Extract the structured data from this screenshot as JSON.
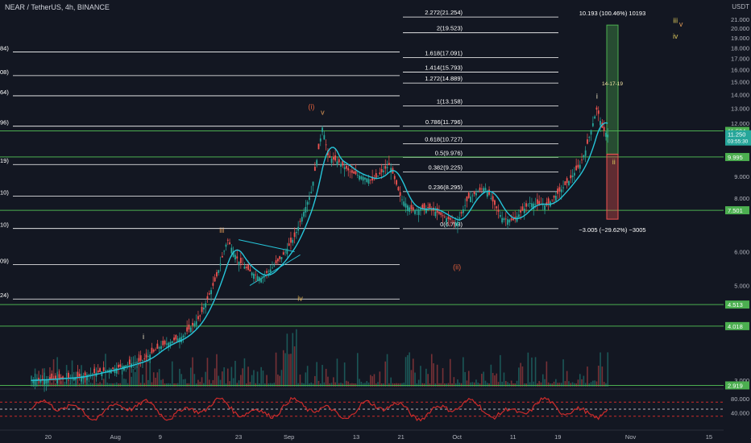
{
  "header": {
    "symbol": "NEAR / TetherUS, 4h, BINANCE",
    "currency": "USDT"
  },
  "chart_data": {
    "type": "candlestick",
    "symbol": "NEAR / TetherUS",
    "interval": "4h",
    "exchange": "BINANCE",
    "y_scale": "log",
    "ylim": [
      2.9,
      22.5
    ],
    "price_axis_ticks": [
      "21.000",
      "20.000",
      "19.000",
      "18.000",
      "17.000",
      "16.000",
      "15.000",
      "14.000",
      "13.000",
      "12.000",
      "9.000",
      "8.000",
      "6.000",
      "5.000",
      "3.000"
    ],
    "time_axis_ticks": [
      "20",
      "Aug",
      "9",
      "23",
      "Sep",
      "13",
      "21",
      "Oct",
      "11",
      "19",
      "Nov",
      "15",
      "23"
    ],
    "price_path": [
      [
        "Jul 17",
        3.0
      ],
      [
        "Jul 25",
        3.05
      ],
      [
        "Aug 1",
        3.2
      ],
      [
        "Aug 6",
        3.35
      ],
      [
        "Aug 9",
        3.6
      ],
      [
        "Aug 13",
        3.8
      ],
      [
        "Aug 16",
        4.2
      ],
      [
        "Aug 19",
        5.2
      ],
      [
        "Aug 21",
        6.4
      ],
      [
        "Aug 23",
        5.7
      ],
      [
        "Aug 25",
        5.4
      ],
      [
        "Aug 27",
        5.2
      ],
      [
        "Aug 29",
        5.5
      ],
      [
        "Aug 31",
        5.9
      ],
      [
        "Sep 1",
        6.2
      ],
      [
        "Sep 2",
        6.5
      ],
      [
        "Sep 5",
        8.3
      ],
      [
        "Sep 7",
        11.8
      ],
      [
        "Sep 8",
        10.0
      ],
      [
        "Sep 10",
        9.7
      ],
      [
        "Sep 12",
        9.2
      ],
      [
        "Sep 14",
        9.0
      ],
      [
        "Sep 16",
        8.8
      ],
      [
        "Sep 19",
        9.6
      ],
      [
        "Sep 21",
        8.0
      ],
      [
        "Sep 23",
        7.5
      ],
      [
        "Sep 26",
        7.6
      ],
      [
        "Sep 29",
        7.2
      ],
      [
        "Oct 1",
        7.0
      ],
      [
        "Oct 3",
        8.0
      ],
      [
        "Oct 6",
        8.5
      ],
      [
        "Oct 9",
        7.2
      ],
      [
        "Oct 11",
        7.1
      ],
      [
        "Oct 14",
        7.8
      ],
      [
        "Oct 17",
        7.7
      ],
      [
        "Oct 19",
        8.2
      ],
      [
        "Oct 21",
        8.8
      ],
      [
        "Oct 23",
        9.6
      ],
      [
        "Oct 24",
        10.4
      ],
      [
        "Oct 26",
        13.0
      ],
      [
        "Oct 27",
        11.6
      ],
      [
        "Oct 28",
        11.25
      ]
    ],
    "fibonacci_levels": [
      {
        "ratio": "0",
        "label": "0(6.793)",
        "price": 6.793
      },
      {
        "ratio": "0.236",
        "label": "0.236(8.295)",
        "price": 8.295
      },
      {
        "ratio": "0.382",
        "label": "0.382(9.225)",
        "price": 9.225
      },
      {
        "ratio": "0.5",
        "label": "0.5(9.976)",
        "price": 9.976
      },
      {
        "ratio": "0.618",
        "label": "0.618(10.727)",
        "price": 10.727
      },
      {
        "ratio": "0.786",
        "label": "0.786(11.796)",
        "price": 11.796
      },
      {
        "ratio": "1",
        "label": "1(13.158)",
        "price": 13.158
      },
      {
        "ratio": "1.272",
        "label": "1.272(14.889)",
        "price": 14.889
      },
      {
        "ratio": "1.414",
        "label": "1.414(15.793)",
        "price": 15.793
      },
      {
        "ratio": "1.618",
        "label": "1.618(17.091)",
        "price": 17.091
      },
      {
        "ratio": "2",
        "label": "2(19.523)",
        "price": 19.523
      },
      {
        "ratio": "2.272",
        "label": "2.272(21.254)",
        "price": 21.254
      }
    ],
    "left_cut_labels": [
      {
        "text": "84)",
        "price": 17.6
      },
      {
        "text": "08)",
        "price": 15.5
      },
      {
        "text": "64)",
        "price": 13.9
      },
      {
        "text": "96)",
        "price": 11.8
      },
      {
        "text": "19)",
        "price": 9.6
      },
      {
        "text": "10)",
        "price": 8.1
      },
      {
        "text": "10)",
        "price": 6.8
      },
      {
        "text": "09)",
        "price": 5.6
      },
      {
        "text": "24)",
        "price": 4.65
      }
    ],
    "horizontal_levels": [
      {
        "price": 11.504,
        "label": "11.504"
      },
      {
        "price": 9.995,
        "label": "9.995"
      },
      {
        "price": 7.501,
        "label": "7.501"
      },
      {
        "price": 4.513,
        "label": "4.513"
      },
      {
        "price": 4.018,
        "label": "4.018"
      },
      {
        "price": 2.919,
        "label": "2.919"
      }
    ],
    "last_price": {
      "value": "11.250",
      "countdown": "03:55:30"
    },
    "long_position": {
      "label": "10.193 (100.46%) 10193",
      "entry": 10.15,
      "target": 20.35,
      "center_text": "14-17-19"
    },
    "short_position": {
      "label": "−3.005 (−29.62%) −3005",
      "entry": 10.15,
      "stop": 7.15
    },
    "wave_labels": [
      {
        "text": "i",
        "date": "Aug 6",
        "price": 3.75,
        "color": "#f0e6c8"
      },
      {
        "text": "iii",
        "date": "Aug 20",
        "price": 6.65,
        "color": "#e09a56"
      },
      {
        "text": "iv",
        "date": "Sep 3",
        "price": 4.6,
        "color": "#e0b050"
      },
      {
        "text": "(i)",
        "date": "Sep 5",
        "price": 12.95,
        "color": "#e0603d"
      },
      {
        "text": "v",
        "date": "Sep 7",
        "price": 12.55,
        "color": "#e09a56"
      },
      {
        "text": "(ii)",
        "date": "Oct 1",
        "price": 5.45,
        "color": "#e0603d"
      },
      {
        "text": "i",
        "date": "Oct 26",
        "price": 13.7,
        "color": "#f0e6c8"
      },
      {
        "text": "ii",
        "date": "Oct 29",
        "price": 9.6,
        "color": "#d6c25a"
      },
      {
        "text": "iii",
        "date": "Nov 9",
        "price": 20.6,
        "color": "#d6c25a"
      },
      {
        "text": "iv",
        "date": "Nov 9",
        "price": 18.9,
        "color": "#d6c25a"
      },
      {
        "text": "v",
        "date": "Nov 10",
        "price": 20.2,
        "color": "#e09a56"
      }
    ],
    "oscillator": {
      "ticks": [
        "80.000",
        "40.000"
      ],
      "upper_band": 70,
      "lower_band": 30,
      "color": "#cc2b2b"
    },
    "moving_average_color": "#26c6da",
    "colors": {
      "up": "#26a69a",
      "down": "#ef5350",
      "fib": "#ffffff",
      "levels": "#4caf50",
      "background": "#131722"
    }
  }
}
